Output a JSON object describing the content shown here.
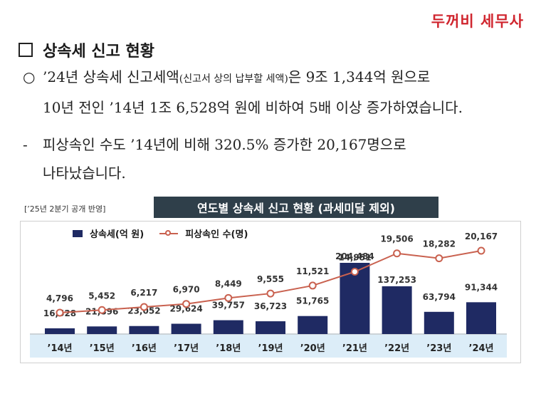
{
  "brand": "두꺼비 세무사",
  "heading": "상속세 신고 현황",
  "para1": {
    "bullet": "○",
    "line1_a": "’24년 상속세 신고세액",
    "line1_small": "(신고서 상의 납부할 세액)",
    "line1_b": "은 9조 1,344억 원으로",
    "line2": "10년 전인 ’14년 1조 6,528억 원에 비하여 5배 이상 증가하였습니다."
  },
  "para2": {
    "bullet": "-",
    "line1": "피상속인 수도 ’14년에 비해 320.5% 증가한 20,167명으로",
    "line2": "나타났습니다."
  },
  "chart_note": "[’25년 2분기 공개 반영]",
  "chart_title": "연도별 상속세 신고 현황 (과세미달 제외)",
  "colors": {
    "bar": "#1f2a63",
    "line": "#c9614f",
    "axis_band": "#dcedf8",
    "brand": "#d0262f"
  },
  "chart_data": {
    "type": "bar",
    "title": "연도별 상속세 신고 현황 (과세미달 제외)",
    "categories": [
      "’14년",
      "’15년",
      "’16년",
      "’17년",
      "’18년",
      "’19년",
      "’20년",
      "’21년",
      "’22년",
      "’23년",
      "’24년"
    ],
    "series": [
      {
        "name": "상속세(억 원)",
        "type": "bar",
        "values": [
          16528,
          21896,
          23052,
          29624,
          39757,
          36723,
          51765,
          204484,
          137253,
          63794,
          91344
        ],
        "labels": [
          "16,528",
          "21,896",
          "23,052",
          "29,624",
          "39,757",
          "36,723",
          "51,765",
          "204,484",
          "137,253",
          "63,794",
          "91,344"
        ]
      },
      {
        "name": "피상속인 수(명)",
        "type": "line",
        "values": [
          4796,
          5452,
          6217,
          6970,
          8449,
          9555,
          11521,
          14951,
          19506,
          18282,
          20167
        ],
        "labels": [
          "4,796",
          "5,452",
          "6,217",
          "6,970",
          "8,449",
          "9,555",
          "11,521",
          "14,951",
          "19,506",
          "18,282",
          "20,167"
        ]
      }
    ],
    "legend_position": "top-left",
    "grid": false
  }
}
